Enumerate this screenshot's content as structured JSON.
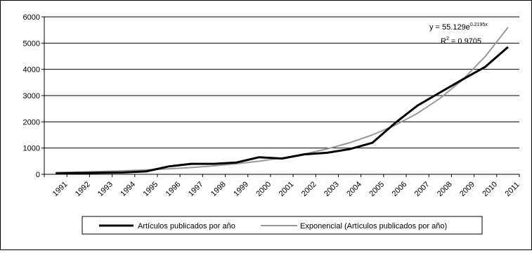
{
  "chart_data": {
    "type": "line",
    "categories": [
      "1991",
      "1992",
      "1993",
      "1994",
      "1995",
      "1996",
      "1997",
      "1998",
      "1999",
      "2000",
      "2001",
      "2002",
      "2003",
      "2004",
      "2005",
      "2006",
      "2007",
      "2008",
      "2009",
      "2010",
      "2011"
    ],
    "ylim": [
      0,
      6000
    ],
    "yticks": [
      "0",
      "1000",
      "2000",
      "3000",
      "4000",
      "5000",
      "6000"
    ],
    "grid": true,
    "legend_position": "bottom",
    "series": [
      {
        "name": "Artículos publicados por año",
        "color": "#000000",
        "values": [
          30,
          50,
          60,
          70,
          110,
          300,
          400,
          400,
          450,
          650,
          600,
          760,
          820,
          960,
          1200,
          1950,
          2620,
          3120,
          3620,
          4100,
          4850
        ]
      },
      {
        "name": "Exponencial (Artículos publicados por año)",
        "color": "#999999",
        "values": [
          69,
          86,
          107,
          133,
          166,
          207,
          258,
          322,
          401,
          499,
          622,
          775,
          966,
          1203,
          1499,
          1867,
          2326,
          2897,
          3609,
          4496,
          5600
        ]
      }
    ],
    "annotation": {
      "equation_prefix": "y = 55.129e",
      "equation_exp": "0.2195x",
      "r2_prefix": "R",
      "r2_sup": "2",
      "r2_value": " = 0.9705"
    }
  }
}
